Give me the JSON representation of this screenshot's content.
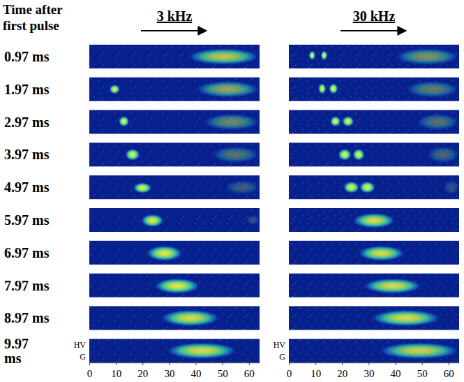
{
  "row_title": "Time after first pulse",
  "row_labels": [
    "0.97 ms",
    "1.97 ms",
    "2.97 ms",
    "3.97 ms",
    "4.97 ms",
    "5.97 ms",
    "6.97 ms",
    "7.97 ms",
    "8.97 ms",
    "9.97 ms"
  ],
  "chart_data": [
    {
      "type": "image",
      "title": "3 kHz",
      "xlim": [
        0,
        64
      ],
      "xticks": [
        0,
        10,
        20,
        30,
        40,
        50,
        60
      ],
      "tick_labels": "x",
      "side_labels": [
        "HV",
        "G"
      ],
      "panels": [
        [
          {
            "x": [
              37,
              64
            ],
            "y": [
              0.15,
              0.85
            ],
            "density": 0.75
          }
        ],
        [
          {
            "x": [
              7.5,
              11.5
            ],
            "y": [
              0.3,
              0.7
            ],
            "density": 0.95
          },
          {
            "x": [
              40,
              64
            ],
            "y": [
              0.15,
              0.85
            ],
            "density": 0.6
          }
        ],
        [
          {
            "x": [
              11,
              15
            ],
            "y": [
              0.25,
              0.7
            ],
            "density": 0.95
          },
          {
            "x": [
              43,
              64
            ],
            "y": [
              0.15,
              0.85
            ],
            "density": 0.45
          }
        ],
        [
          {
            "x": [
              13.5,
              19
            ],
            "y": [
              0.25,
              0.75
            ],
            "density": 0.95
          },
          {
            "x": [
              46,
              64
            ],
            "y": [
              0.15,
              0.85
            ],
            "density": 0.35
          }
        ],
        [
          {
            "x": [
              16.5,
              23.5
            ],
            "y": [
              0.3,
              0.75
            ],
            "density": 0.95
          },
          {
            "x": [
              51,
              64
            ],
            "y": [
              0.2,
              0.8
            ],
            "density": 0.25
          }
        ],
        [
          {
            "x": [
              19.5,
              28
            ],
            "y": [
              0.25,
              0.8
            ],
            "density": 0.9
          },
          {
            "x": [
              59,
              64
            ],
            "y": [
              0.3,
              0.7
            ],
            "density": 0.2
          }
        ],
        [
          {
            "x": [
              21.5,
              35
            ],
            "y": [
              0.2,
              0.85
            ],
            "density": 0.9
          }
        ],
        [
          {
            "x": [
              24.5,
              41.5
            ],
            "y": [
              0.2,
              0.85
            ],
            "density": 0.9
          }
        ],
        [
          {
            "x": [
              27,
              49
            ],
            "y": [
              0.15,
              0.85
            ],
            "density": 0.85
          }
        ],
        [
          {
            "x": [
              29,
              55.5
            ],
            "y": [
              0.15,
              0.85
            ],
            "density": 0.85
          }
        ]
      ]
    },
    {
      "type": "image",
      "title": "30 kHz",
      "xlim": [
        0,
        64
      ],
      "xticks": [
        0,
        10,
        20,
        30,
        40,
        50,
        60
      ],
      "tick_labels": "x",
      "side_labels": [
        "HV",
        "G"
      ],
      "panels": [
        [
          {
            "x": [
              7.5,
              10
            ],
            "y": [
              0.25,
              0.65
            ],
            "density": 0.95
          },
          {
            "x": [
              12,
              14.5
            ],
            "y": [
              0.25,
              0.65
            ],
            "density": 0.95
          },
          {
            "x": [
              40,
              64
            ],
            "y": [
              0.15,
              0.85
            ],
            "density": 0.5
          }
        ],
        [
          {
            "x": [
              11,
              14
            ],
            "y": [
              0.25,
              0.7
            ],
            "density": 0.95
          },
          {
            "x": [
              15,
              18.5
            ],
            "y": [
              0.25,
              0.7
            ],
            "density": 0.95
          },
          {
            "x": [
              44,
              64
            ],
            "y": [
              0.15,
              0.85
            ],
            "density": 0.4
          }
        ],
        [
          {
            "x": [
              15.5,
              19.5
            ],
            "y": [
              0.25,
              0.7
            ],
            "density": 0.95
          },
          {
            "x": [
              20,
              24.5
            ],
            "y": [
              0.25,
              0.7
            ],
            "density": 0.95
          },
          {
            "x": [
              48,
              64
            ],
            "y": [
              0.15,
              0.85
            ],
            "density": 0.35
          }
        ],
        [
          {
            "x": [
              18.5,
              23.5
            ],
            "y": [
              0.25,
              0.75
            ],
            "density": 0.95
          },
          {
            "x": [
              24,
              28.5
            ],
            "y": [
              0.25,
              0.75
            ],
            "density": 0.95
          },
          {
            "x": [
              52,
              64
            ],
            "y": [
              0.15,
              0.85
            ],
            "density": 0.3
          }
        ],
        [
          {
            "x": [
              20.5,
              26.5
            ],
            "y": [
              0.25,
              0.75
            ],
            "density": 0.95
          },
          {
            "x": [
              26.5,
              32.5
            ],
            "y": [
              0.25,
              0.75
            ],
            "density": 0.95
          },
          {
            "x": [
              58,
              64
            ],
            "y": [
              0.2,
              0.8
            ],
            "density": 0.2
          }
        ],
        [
          {
            "x": [
              24,
              40
            ],
            "y": [
              0.2,
              0.85
            ],
            "density": 0.85
          }
        ],
        [
          {
            "x": [
              26,
              43.5
            ],
            "y": [
              0.2,
              0.85
            ],
            "density": 0.85
          }
        ],
        [
          {
            "x": [
              28,
              50
            ],
            "y": [
              0.2,
              0.85
            ],
            "density": 0.85
          }
        ],
        [
          {
            "x": [
              31,
              57
            ],
            "y": [
              0.15,
              0.85
            ],
            "density": 0.85
          }
        ],
        [
          {
            "x": [
              34,
              64
            ],
            "y": [
              0.15,
              0.85
            ],
            "density": 0.8
          }
        ]
      ]
    }
  ]
}
